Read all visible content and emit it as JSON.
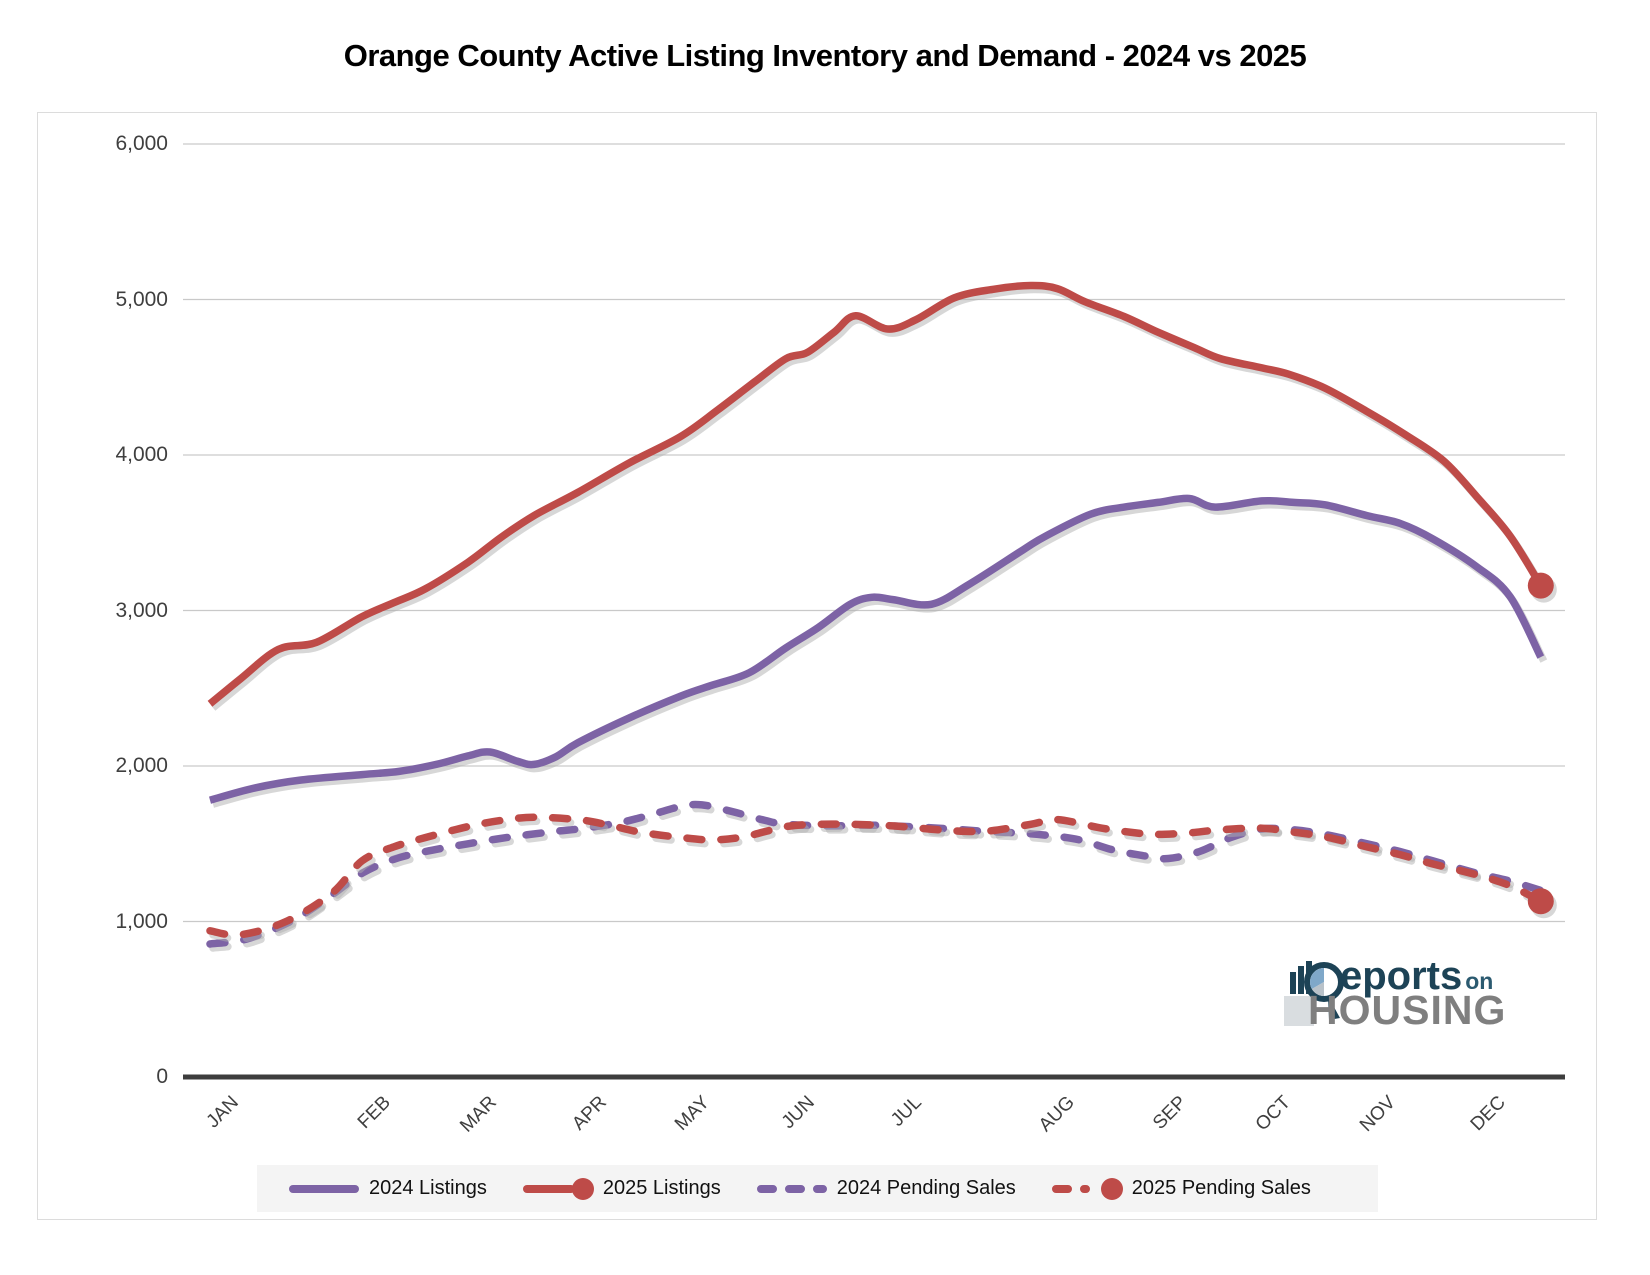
{
  "title": "Orange County Active Listing Inventory and Demand - 2024 vs 2025",
  "logo": {
    "part1": "eports",
    "part2": "on",
    "part3": "HOUSING"
  },
  "chart_data": {
    "type": "line",
    "title": "Orange County Active Listing Inventory and Demand - 2024 vs 2025",
    "x_categories": [
      "JAN",
      "FEB",
      "MAR",
      "APR",
      "MAY",
      "JUN",
      "JUL",
      "AUG",
      "SEP",
      "OCT",
      "NOV",
      "DEC"
    ],
    "y_axis": {
      "min": 0,
      "max": 6000,
      "tick_step": 1000
    },
    "y_tick_labels": [
      "0",
      "1,000",
      "2,000",
      "3,000",
      "4,000",
      "5,000",
      "6,000"
    ],
    "grid": true,
    "legend_position": "bottom",
    "colors": {
      "purple": "#7D63A5",
      "red": "#BE4B48",
      "shadow": "#b0b0b0",
      "gridline": "#c9c9c9",
      "axis": "#3d3d3d"
    },
    "series": [
      {
        "name": "2024 Listings",
        "color": "#7D63A5",
        "style": "solid",
        "end_marker": false,
        "points": [
          [
            0,
            1780
          ],
          [
            0.3,
            1860
          ],
          [
            0.6,
            1910
          ],
          [
            1,
            1945
          ],
          [
            1.35,
            1965
          ],
          [
            1.7,
            2010
          ],
          [
            2,
            2065
          ],
          [
            2.2,
            2090
          ],
          [
            2.45,
            2030
          ],
          [
            2.6,
            2010
          ],
          [
            2.8,
            2060
          ],
          [
            3,
            2150
          ],
          [
            3.5,
            2310
          ],
          [
            4,
            2450
          ],
          [
            4.3,
            2520
          ],
          [
            4.65,
            2600
          ],
          [
            5,
            2760
          ],
          [
            5.3,
            2890
          ],
          [
            5.6,
            3040
          ],
          [
            5.8,
            3085
          ],
          [
            6,
            3070
          ],
          [
            6.25,
            3040
          ],
          [
            6.5,
            3170
          ],
          [
            6.85,
            3390
          ],
          [
            7,
            3480
          ],
          [
            7.4,
            3620
          ],
          [
            7.7,
            3665
          ],
          [
            8,
            3695
          ],
          [
            8.3,
            3720
          ],
          [
            8.55,
            3665
          ],
          [
            9,
            3705
          ],
          [
            9.3,
            3695
          ],
          [
            9.6,
            3680
          ],
          [
            10,
            3610
          ],
          [
            10.3,
            3560
          ],
          [
            10.6,
            3460
          ],
          [
            11,
            3280
          ],
          [
            11.3,
            3090
          ],
          [
            11.58,
            2700
          ]
        ]
      },
      {
        "name": "2025 Listings",
        "color": "#BE4B48",
        "style": "solid",
        "end_marker": true,
        "points": [
          [
            0,
            2400
          ],
          [
            0.2,
            2560
          ],
          [
            0.45,
            2750
          ],
          [
            0.7,
            2795
          ],
          [
            1,
            2960
          ],
          [
            1.3,
            3050
          ],
          [
            1.6,
            3140
          ],
          [
            2,
            3310
          ],
          [
            2.3,
            3470
          ],
          [
            2.6,
            3610
          ],
          [
            3,
            3760
          ],
          [
            3.5,
            3950
          ],
          [
            4,
            4120
          ],
          [
            4.35,
            4290
          ],
          [
            4.7,
            4470
          ],
          [
            5,
            4620
          ],
          [
            5.2,
            4660
          ],
          [
            5.45,
            4790
          ],
          [
            5.65,
            4895
          ],
          [
            5.95,
            4810
          ],
          [
            6.15,
            4870
          ],
          [
            6.4,
            5010
          ],
          [
            6.65,
            5065
          ],
          [
            6.9,
            5090
          ],
          [
            7.1,
            5070
          ],
          [
            7.35,
            4985
          ],
          [
            7.7,
            4890
          ],
          [
            8,
            4790
          ],
          [
            8.35,
            4690
          ],
          [
            8.6,
            4620
          ],
          [
            9,
            4560
          ],
          [
            9.25,
            4520
          ],
          [
            9.6,
            4430
          ],
          [
            10,
            4280
          ],
          [
            10.35,
            4130
          ],
          [
            10.7,
            3960
          ],
          [
            11,
            3730
          ],
          [
            11.3,
            3480
          ],
          [
            11.58,
            3160
          ]
        ]
      },
      {
        "name": "2024 Pending Sales",
        "color": "#7D63A5",
        "style": "dashed",
        "end_marker": false,
        "points": [
          [
            0,
            855
          ],
          [
            0.25,
            890
          ],
          [
            0.55,
            1010
          ],
          [
            0.8,
            1170
          ],
          [
            1,
            1310
          ],
          [
            1.3,
            1400
          ],
          [
            1.6,
            1450
          ],
          [
            2,
            1500
          ],
          [
            2.4,
            1545
          ],
          [
            2.8,
            1580
          ],
          [
            3,
            1595
          ],
          [
            3.4,
            1635
          ],
          [
            3.7,
            1685
          ],
          [
            4,
            1740
          ],
          [
            4.2,
            1750
          ],
          [
            4.5,
            1705
          ],
          [
            4.8,
            1650
          ],
          [
            5,
            1625
          ],
          [
            5.4,
            1615
          ],
          [
            5.7,
            1620
          ],
          [
            6,
            1615
          ],
          [
            6.3,
            1600
          ],
          [
            6.6,
            1580
          ],
          [
            6.8,
            1570
          ],
          [
            7,
            1555
          ],
          [
            7.3,
            1525
          ],
          [
            7.6,
            1460
          ],
          [
            7.9,
            1420
          ],
          [
            8.1,
            1405
          ],
          [
            8.4,
            1450
          ],
          [
            8.7,
            1540
          ],
          [
            9,
            1595
          ],
          [
            9.3,
            1590
          ],
          [
            9.6,
            1560
          ],
          [
            10,
            1500
          ],
          [
            10.3,
            1450
          ],
          [
            10.6,
            1390
          ],
          [
            11,
            1310
          ],
          [
            11.3,
            1260
          ],
          [
            11.58,
            1200
          ]
        ]
      },
      {
        "name": "2025 Pending Sales",
        "color": "#BE4B48",
        "style": "dashed",
        "end_marker": true,
        "points": [
          [
            0,
            940
          ],
          [
            0.2,
            915
          ],
          [
            0.5,
            1000
          ],
          [
            0.8,
            1180
          ],
          [
            1,
            1390
          ],
          [
            1.3,
            1480
          ],
          [
            1.6,
            1540
          ],
          [
            2,
            1610
          ],
          [
            2.3,
            1650
          ],
          [
            2.6,
            1670
          ],
          [
            3,
            1655
          ],
          [
            3.3,
            1620
          ],
          [
            3.6,
            1575
          ],
          [
            4,
            1540
          ],
          [
            4.3,
            1525
          ],
          [
            4.6,
            1545
          ],
          [
            5,
            1610
          ],
          [
            5.3,
            1625
          ],
          [
            5.6,
            1625
          ],
          [
            6,
            1615
          ],
          [
            6.3,
            1590
          ],
          [
            6.6,
            1580
          ],
          [
            6.9,
            1625
          ],
          [
            7.1,
            1655
          ],
          [
            7.5,
            1600
          ],
          [
            7.8,
            1570
          ],
          [
            8,
            1560
          ],
          [
            8.3,
            1570
          ],
          [
            8.6,
            1590
          ],
          [
            9,
            1600
          ],
          [
            9.3,
            1575
          ],
          [
            9.6,
            1545
          ],
          [
            10,
            1480
          ],
          [
            10.3,
            1430
          ],
          [
            10.6,
            1370
          ],
          [
            11,
            1300
          ],
          [
            11.3,
            1230
          ],
          [
            11.58,
            1130
          ]
        ]
      }
    ]
  }
}
